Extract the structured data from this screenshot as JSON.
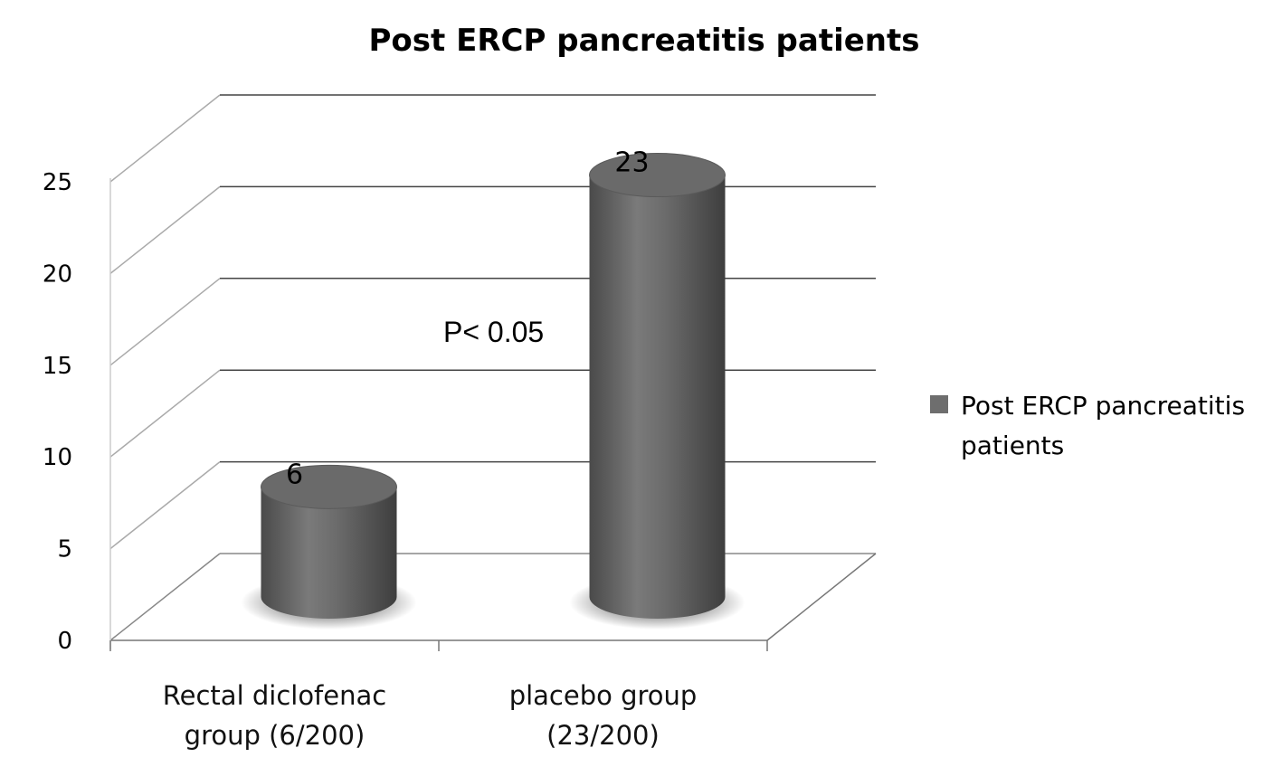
{
  "chart_data": {
    "type": "bar",
    "style": "3d-cylinder",
    "title": "Post ERCP pancreatitis patients",
    "xlabel": "",
    "ylabel": "",
    "categories": [
      [
        "Rectal diclofenac",
        "group (6/200)"
      ],
      [
        "placebo group",
        "(23/200)"
      ]
    ],
    "series": [
      {
        "name": "Post ERCP pancreatitis patients",
        "values": [
          6,
          23
        ],
        "color": "#6e6e6e"
      }
    ],
    "data_labels": [
      "6",
      "23"
    ],
    "ylim": [
      0,
      25
    ],
    "yticks": [
      0,
      5,
      10,
      15,
      20,
      25
    ],
    "ytick_labels": [
      "0",
      "5",
      "10",
      "15",
      "20",
      "25"
    ],
    "grid": true,
    "legend": {
      "position": "right",
      "lines": [
        "Post ERCP pancreatitis",
        "patients"
      ]
    },
    "annotations": [
      "P< 0.05"
    ]
  }
}
